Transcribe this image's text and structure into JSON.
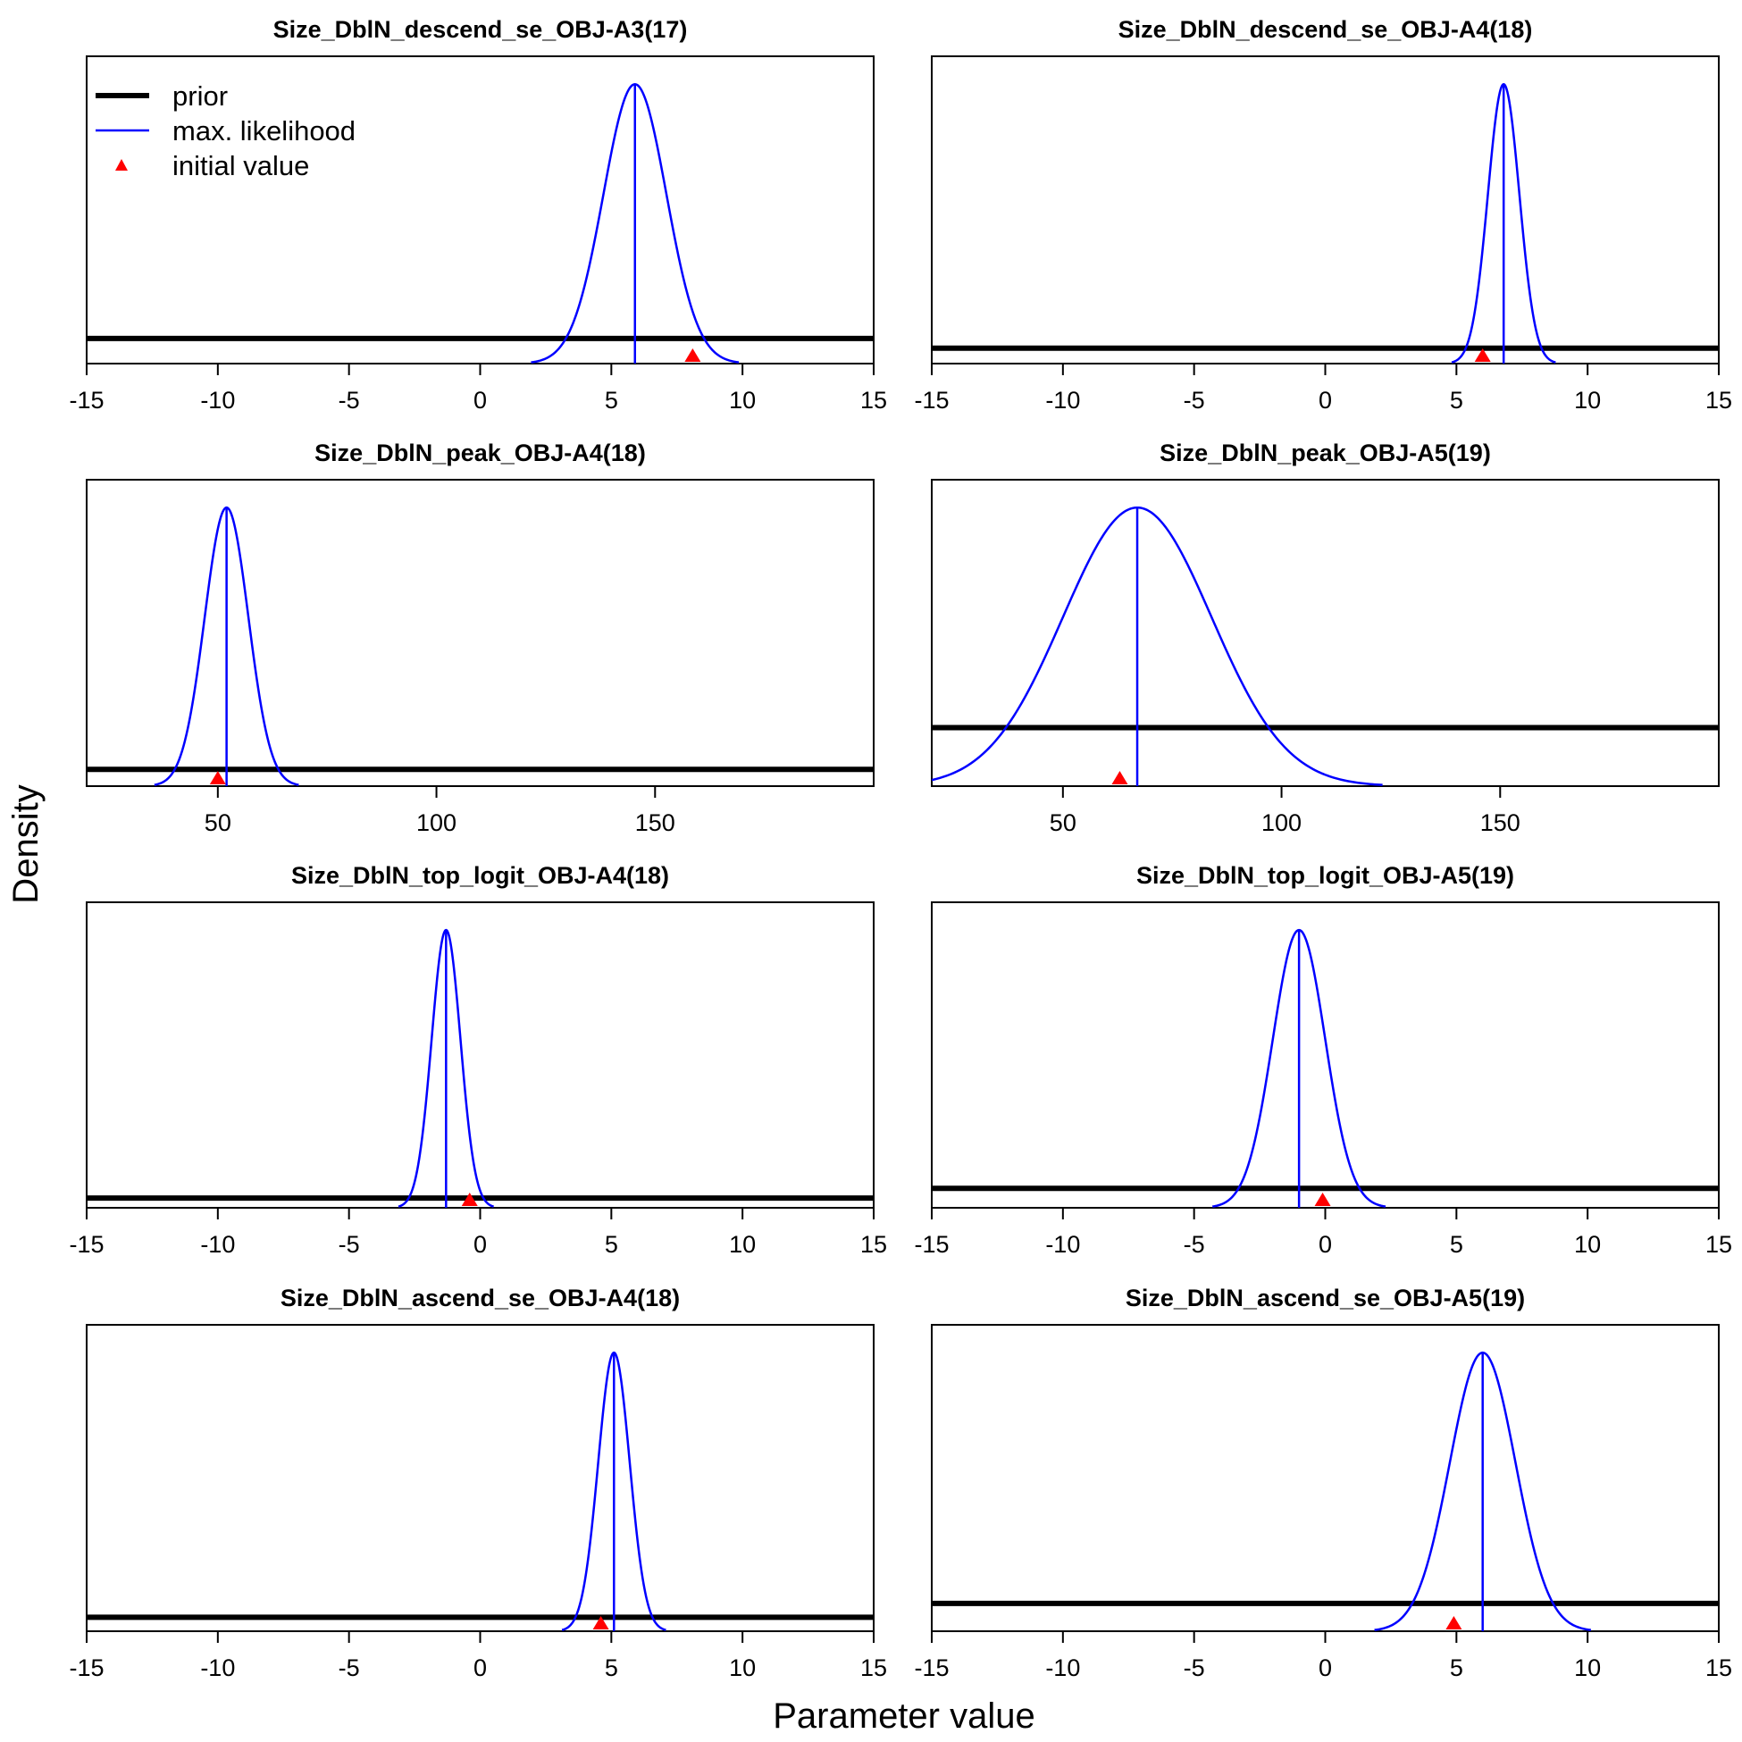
{
  "figure": {
    "ylabel": "Density",
    "xlabel": "Parameter value",
    "legend": {
      "placement": "top-left of first panel",
      "items": [
        {
          "label": "prior",
          "color": "#000000",
          "kind": "thick-line"
        },
        {
          "label": "max. likelihood",
          "color": "#0000ff",
          "kind": "line"
        },
        {
          "label": "initial value",
          "color": "#ff0000",
          "kind": "triangle"
        }
      ]
    }
  },
  "chart_data": [
    {
      "type": "line",
      "title": "Size_DblN_descend_se_OBJ-A3(17)",
      "xlim": [
        -15,
        15
      ],
      "xticks": [
        -15,
        -10,
        -5,
        0,
        5,
        10,
        15
      ],
      "max_likelihood": {
        "mean": 5.9,
        "sd": 1.2
      },
      "prior_level": 0.09,
      "initial_value": 8.1
    },
    {
      "type": "line",
      "title": "Size_DblN_descend_se_OBJ-A4(18)",
      "xlim": [
        -15,
        15
      ],
      "xticks": [
        -15,
        -10,
        -5,
        0,
        5,
        10,
        15
      ],
      "max_likelihood": {
        "mean": 6.8,
        "sd": 0.6
      },
      "prior_level": 0.055,
      "initial_value": 6.0
    },
    {
      "type": "line",
      "title": "Size_DblN_peak_OBJ-A4(18)",
      "xlim": [
        20,
        200
      ],
      "xticks": [
        50,
        100,
        150
      ],
      "max_likelihood": {
        "mean": 52,
        "sd": 5
      },
      "prior_level": 0.06,
      "initial_value": 50
    },
    {
      "type": "line",
      "title": "Size_DblN_peak_OBJ-A5(19)",
      "xlim": [
        20,
        200
      ],
      "xticks": [
        50,
        100,
        150
      ],
      "max_likelihood": {
        "mean": 67,
        "sd": 17
      },
      "prior_level": 0.21,
      "initial_value": 63
    },
    {
      "type": "line",
      "title": "Size_DblN_top_logit_OBJ-A4(18)",
      "xlim": [
        -15,
        15
      ],
      "xticks": [
        -15,
        -10,
        -5,
        0,
        5,
        10,
        15
      ],
      "max_likelihood": {
        "mean": -1.3,
        "sd": 0.55
      },
      "prior_level": 0.035,
      "initial_value": -0.4
    },
    {
      "type": "line",
      "title": "Size_DblN_top_logit_OBJ-A5(19)",
      "xlim": [
        -15,
        15
      ],
      "xticks": [
        -15,
        -10,
        -5,
        0,
        5,
        10,
        15
      ],
      "max_likelihood": {
        "mean": -1.0,
        "sd": 1.0
      },
      "prior_level": 0.07,
      "initial_value": -0.1
    },
    {
      "type": "line",
      "title": "Size_DblN_ascend_se_OBJ-A4(18)",
      "xlim": [
        -15,
        15
      ],
      "xticks": [
        -15,
        -10,
        -5,
        0,
        5,
        10,
        15
      ],
      "max_likelihood": {
        "mean": 5.1,
        "sd": 0.6
      },
      "prior_level": 0.05,
      "initial_value": 4.6
    },
    {
      "type": "line",
      "title": "Size_DblN_ascend_se_OBJ-A5(19)",
      "xlim": [
        -15,
        15
      ],
      "xticks": [
        -15,
        -10,
        -5,
        0,
        5,
        10,
        15
      ],
      "max_likelihood": {
        "mean": 6.0,
        "sd": 1.25
      },
      "prior_level": 0.1,
      "initial_value": 4.9
    }
  ]
}
